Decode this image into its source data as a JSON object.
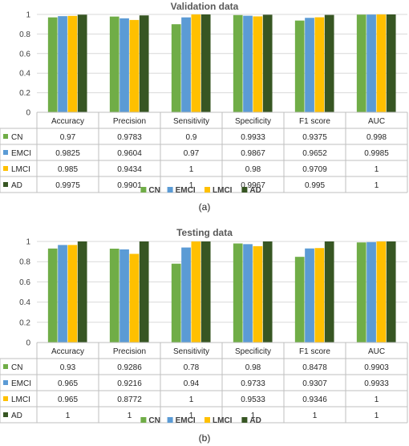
{
  "colors": {
    "CN": "#70AD47",
    "EMCI": "#5B9BD5",
    "LMCI": "#FFC000",
    "AD": "#375623"
  },
  "chart_data": [
    {
      "type": "bar",
      "title": "Validation data",
      "caption": "(a)",
      "categories": [
        "Accuracy",
        "Precision",
        "Sensitivity",
        "Specificity",
        "F1 score",
        "AUC"
      ],
      "ylim": [
        0,
        1
      ],
      "yticks": [
        "0",
        "0.2",
        "0.4",
        "0.6",
        "0.8",
        "1"
      ],
      "grid": true,
      "legend_position": "bottom",
      "series": [
        {
          "name": "CN",
          "values": [
            0.97,
            0.9783,
            0.9,
            0.9933,
            0.9375,
            0.998
          ],
          "labels": [
            "0.97",
            "0.9783",
            "0.9",
            "0.9933",
            "0.9375",
            "0.998"
          ]
        },
        {
          "name": "EMCI",
          "values": [
            0.9825,
            0.9604,
            0.97,
            0.9867,
            0.9652,
            0.9985
          ],
          "labels": [
            "0.9825",
            "0.9604",
            "0.97",
            "0.9867",
            "0.9652",
            "0.9985"
          ]
        },
        {
          "name": "LMCI",
          "values": [
            0.985,
            0.9434,
            1,
            0.98,
            0.9709,
            1
          ],
          "labels": [
            "0.985",
            "0.9434",
            "1",
            "0.98",
            "0.9709",
            "1"
          ]
        },
        {
          "name": "AD",
          "values": [
            0.9975,
            0.9901,
            1,
            0.9967,
            0.995,
            1
          ],
          "labels": [
            "0.9975",
            "0.9901",
            "1",
            "0.9967",
            "0.995",
            "1"
          ]
        }
      ]
    },
    {
      "type": "bar",
      "title": "Testing data",
      "caption": "(b)",
      "categories": [
        "Accuracy",
        "Precision",
        "Sensitivity",
        "Specificity",
        "F1 score",
        "AUC"
      ],
      "ylim": [
        0,
        1
      ],
      "yticks": [
        "0",
        "0.2",
        "0.4",
        "0.6",
        "0.8",
        "1"
      ],
      "grid": true,
      "legend_position": "bottom",
      "series": [
        {
          "name": "CN",
          "values": [
            0.93,
            0.9286,
            0.78,
            0.98,
            0.8478,
            0.9903
          ],
          "labels": [
            "0.93",
            "0.9286",
            "0.78",
            "0.98",
            "0.8478",
            "0.9903"
          ]
        },
        {
          "name": "EMCI",
          "values": [
            0.965,
            0.9216,
            0.94,
            0.9733,
            0.9307,
            0.9933
          ],
          "labels": [
            "0.965",
            "0.9216",
            "0.94",
            "0.9733",
            "0.9307",
            "0.9933"
          ]
        },
        {
          "name": "LMCI",
          "values": [
            0.965,
            0.8772,
            1,
            0.9533,
            0.9346,
            1
          ],
          "labels": [
            "0.965",
            "0.8772",
            "1",
            "0.9533",
            "0.9346",
            "1"
          ]
        },
        {
          "name": "AD",
          "values": [
            1,
            1,
            1,
            1,
            1,
            1
          ],
          "labels": [
            "1",
            "1",
            "1",
            "1",
            "1",
            "1"
          ]
        }
      ]
    }
  ]
}
